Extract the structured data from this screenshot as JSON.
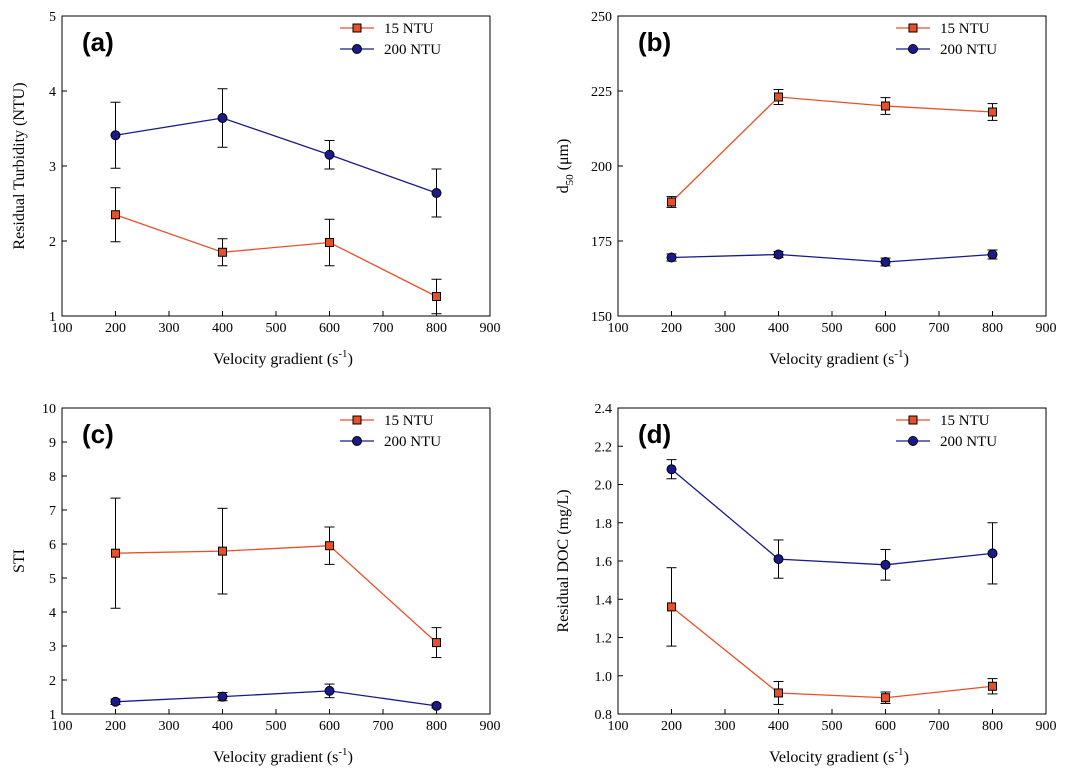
{
  "colors": {
    "series_15": "#e8502a",
    "series_200": "#1a1a8a",
    "marker_15_fill": "#e8502a",
    "marker_200_fill": "#1a1a8a"
  },
  "legend": {
    "entry_15": "15 NTU",
    "entry_200": "200 NTU"
  },
  "chart_data": [
    {
      "type": "line",
      "panel_label": "(a)",
      "x": [
        200,
        400,
        600,
        800
      ],
      "xlim": [
        100,
        900
      ],
      "xticks": [
        100,
        200,
        300,
        400,
        500,
        600,
        700,
        800,
        900
      ],
      "xlabel_main": "Velocity gradient (s",
      "xlabel_sup": "-1",
      "xlabel_end": ")",
      "ylabel_main": "Residual Turbidity (NTU)",
      "ylabel_sub": "",
      "ylabel_end": "",
      "ylim": [
        1,
        5
      ],
      "yticks": [
        1,
        2,
        3,
        4,
        5
      ],
      "ydecimals": 0,
      "legend_position": "top-right",
      "series": [
        {
          "name": "15 NTU",
          "marker": "square",
          "values": [
            2.35,
            1.85,
            1.98,
            1.26
          ],
          "errors": [
            0.36,
            0.18,
            0.31,
            0.23
          ]
        },
        {
          "name": "200 NTU",
          "marker": "circle",
          "values": [
            3.41,
            3.64,
            3.15,
            2.64
          ],
          "errors": [
            0.44,
            0.39,
            0.19,
            0.32
          ]
        }
      ]
    },
    {
      "type": "line",
      "panel_label": "(b)",
      "x": [
        200,
        400,
        600,
        800
      ],
      "xlim": [
        100,
        900
      ],
      "xticks": [
        100,
        200,
        300,
        400,
        500,
        600,
        700,
        800,
        900
      ],
      "xlabel_main": "Velocity gradient (s",
      "xlabel_sup": "-1",
      "xlabel_end": ")",
      "ylabel_main": "d",
      "ylabel_sub": "50",
      "ylabel_end": " (μm)",
      "ylim": [
        150,
        250
      ],
      "yticks": [
        150,
        175,
        200,
        225,
        250
      ],
      "ydecimals": 0,
      "legend_position": "top-right",
      "series": [
        {
          "name": "15 NTU",
          "marker": "square",
          "values": [
            188,
            223,
            220,
            218
          ],
          "errors": [
            1.8,
            2.5,
            2.8,
            2.8
          ]
        },
        {
          "name": "200 NTU",
          "marker": "circle",
          "values": [
            169.5,
            170.5,
            168,
            170.5
          ],
          "errors": [
            1.2,
            1.0,
            1.3,
            1.5
          ]
        }
      ]
    },
    {
      "type": "line",
      "panel_label": "(c)",
      "x": [
        200,
        400,
        600,
        800
      ],
      "xlim": [
        100,
        900
      ],
      "xticks": [
        100,
        200,
        300,
        400,
        500,
        600,
        700,
        800,
        900
      ],
      "xlabel_main": "Velocity gradient (s",
      "xlabel_sup": "-1",
      "xlabel_end": ")",
      "ylabel_main": "STI",
      "ylabel_sub": "",
      "ylabel_end": "",
      "ylim": [
        1,
        10
      ],
      "yticks": [
        1,
        2,
        3,
        4,
        5,
        6,
        7,
        8,
        9,
        10
      ],
      "ydecimals": 0,
      "legend_position": "top-right",
      "series": [
        {
          "name": "15 NTU",
          "marker": "square",
          "values": [
            5.73,
            5.79,
            5.95,
            3.1
          ],
          "errors": [
            1.62,
            1.26,
            0.55,
            0.44
          ]
        },
        {
          "name": "200 NTU",
          "marker": "circle",
          "values": [
            1.36,
            1.51,
            1.68,
            1.24
          ],
          "errors": [
            0.08,
            0.12,
            0.2,
            0.06
          ]
        }
      ]
    },
    {
      "type": "line",
      "panel_label": "(d)",
      "x": [
        200,
        400,
        600,
        800
      ],
      "xlim": [
        100,
        900
      ],
      "xticks": [
        100,
        200,
        300,
        400,
        500,
        600,
        700,
        800,
        900
      ],
      "xlabel_main": "Velocity gradient (s",
      "xlabel_sup": "-1",
      "xlabel_end": ")",
      "ylabel_main": "Residual DOC (mg/L)",
      "ylabel_sub": "",
      "ylabel_end": "",
      "ylim": [
        0.8,
        2.4
      ],
      "yticks": [
        0.8,
        1.0,
        1.2,
        1.4,
        1.6,
        1.8,
        2.0,
        2.2,
        2.4
      ],
      "ydecimals": 1,
      "legend_position": "top-right",
      "series": [
        {
          "name": "15 NTU",
          "marker": "square",
          "values": [
            1.36,
            0.91,
            0.885,
            0.945
          ],
          "errors": [
            0.205,
            0.06,
            0.03,
            0.04
          ]
        },
        {
          "name": "200 NTU",
          "marker": "circle",
          "values": [
            2.08,
            1.61,
            1.58,
            1.64
          ],
          "errors": [
            0.05,
            0.1,
            0.08,
            0.16
          ]
        }
      ]
    }
  ]
}
